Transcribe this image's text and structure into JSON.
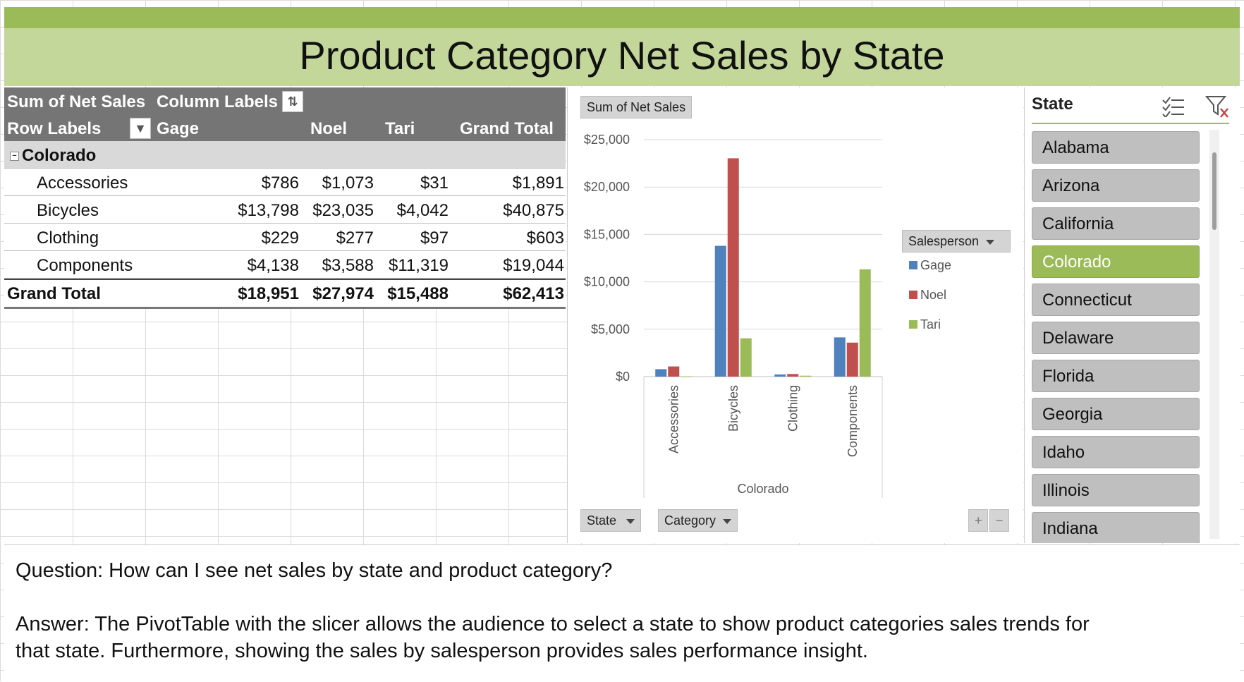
{
  "title": "Product Category Net Sales by State",
  "pivot": {
    "value_field": "Sum of Net Sales",
    "column_labels": "Column Labels",
    "row_labels": "Row Labels",
    "columns": [
      "Gage",
      "Noel",
      "Tari",
      "Grand Total"
    ],
    "group": "Colorado",
    "rows": [
      {
        "label": "Accessories",
        "values": [
          "$786",
          "$1,073",
          "$31",
          "$1,891"
        ]
      },
      {
        "label": "Bicycles",
        "values": [
          "$13,798",
          "$23,035",
          "$4,042",
          "$40,875"
        ]
      },
      {
        "label": "Clothing",
        "values": [
          "$229",
          "$277",
          "$97",
          "$603"
        ]
      },
      {
        "label": "Components",
        "values": [
          "$4,138",
          "$3,588",
          "$11,319",
          "$19,044"
        ]
      }
    ],
    "grand_total": {
      "label": "Grand Total",
      "values": [
        "$18,951",
        "$27,974",
        "$15,488",
        "$62,413"
      ]
    }
  },
  "chart": {
    "value_button": "Sum of Net Sales",
    "legend_title": "Salesperson",
    "state_button": "State",
    "category_button": "Category",
    "plus": "+",
    "minus": "−"
  },
  "chart_data": {
    "type": "bar",
    "categories": [
      "Accessories",
      "Bicycles",
      "Clothing",
      "Components"
    ],
    "xlabel": "Colorado",
    "ylabel": "",
    "ylim": [
      0,
      25000
    ],
    "yticks": [
      "$0",
      "$5,000",
      "$10,000",
      "$15,000",
      "$20,000",
      "$25,000"
    ],
    "legend_position": "right",
    "series": [
      {
        "name": "Gage",
        "color": "#4f81bd",
        "values": [
          786,
          13798,
          229,
          4138
        ]
      },
      {
        "name": "Noel",
        "color": "#c0504d",
        "values": [
          1073,
          23035,
          277,
          3588
        ]
      },
      {
        "name": "Tari",
        "color": "#9bbb59",
        "values": [
          31,
          4042,
          97,
          11319
        ]
      }
    ]
  },
  "slicer": {
    "title": "State",
    "items": [
      "Alabama",
      "Arizona",
      "California",
      "Colorado",
      "Connecticut",
      "Delaware",
      "Florida",
      "Georgia",
      "Idaho",
      "Illinois",
      "Indiana"
    ],
    "selected": "Colorado",
    "accent": "#9bbb59"
  },
  "qa": {
    "question": "Question: How can I see net sales by state and product category?",
    "answer_line1": "Answer: The PivotTable with the slicer allows the audience to select a state to show product categories sales trends for",
    "answer_line2": "that state. Furthermore, showing the sales by salesperson provides sales performance insight."
  }
}
